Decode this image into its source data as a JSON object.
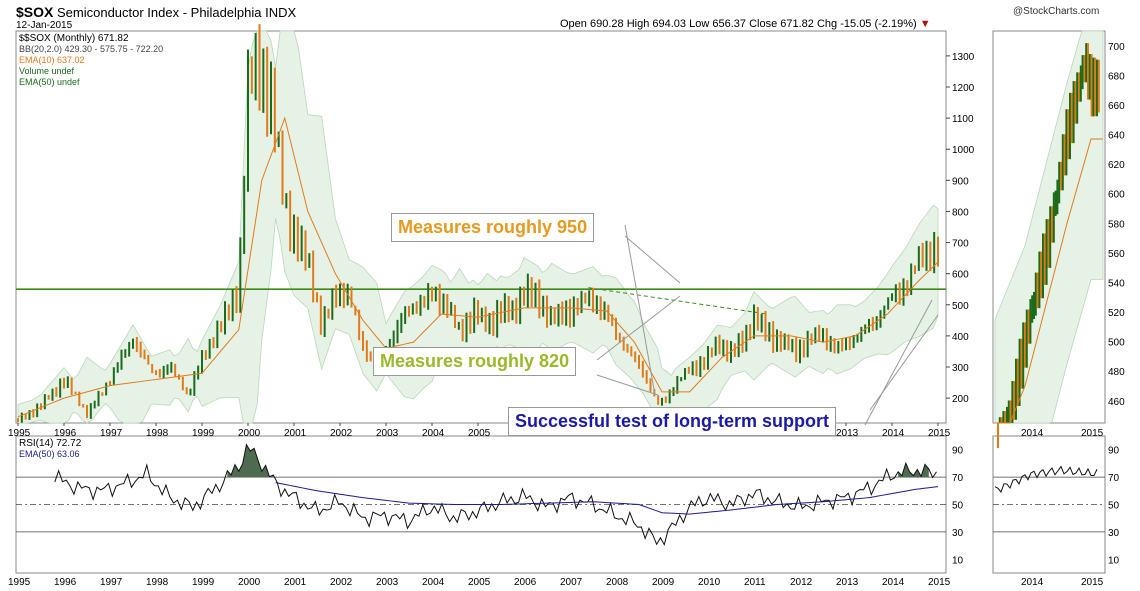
{
  "header": {
    "symbol": "$SOX",
    "name": "Semiconductor Index - Philadelphia",
    "exchange": "INDX",
    "date": "12-Jan-2015",
    "watermark": "@StockCharts.com",
    "open_label": "Open",
    "open": "690.28",
    "high_label": "High",
    "high": "694.03",
    "low_label": "Low",
    "low": "656.37",
    "close_label": "Close",
    "close": "671.82",
    "chg_label": "Chg",
    "chg": "-15.05 (-2.19%)",
    "chg_arrow": "▼"
  },
  "legend": {
    "series": "$SOX (Monthly) 671.82",
    "bb": "BB(20,2.0) 429.30 - 575.75 - 722.20",
    "ema10": "EMA(10) 637.02",
    "volume": "Volume undef",
    "ema50": "EMA(50) undef"
  },
  "rsi_legend": {
    "rsi": "RSI(14) 72.72",
    "ema": "EMA(50) 63.06"
  },
  "annotations": {
    "a950": "Measures roughly 950",
    "a820": "Measures roughly 820",
    "support": "Successful test of long-term support"
  },
  "colors": {
    "up": "#1a6b1a",
    "down": "#e07b1a",
    "bb_fill": "#e6f2e6",
    "support_line": "#3a8a1a",
    "a950_text": "#e69a1f",
    "a820_text": "#9ab92a",
    "support_text": "#1a1aa6",
    "rsi_ema": "#1a1a8c",
    "overbought_fill": "#4f6b4f"
  },
  "chart_data": [
    {
      "type": "line",
      "title": "$SOX Semiconductor Index - Philadelphia (Monthly)",
      "x_ticks": [
        "1995",
        "1996",
        "1997",
        "1998",
        "1999",
        "2000",
        "2001",
        "2002",
        "2003",
        "2004",
        "2005",
        "2006",
        "2007",
        "2008",
        "2009",
        "2010",
        "2011",
        "2012",
        "2013",
        "2014",
        "2015"
      ],
      "y_ticks": [
        200,
        300,
        400,
        500,
        600,
        700,
        800,
        900,
        1000,
        1100,
        1200,
        1300
      ],
      "ylim": [
        120,
        1380
      ],
      "support_level": 550,
      "series": [
        {
          "name": "$SOX monthly close",
          "x": [
            1995.0,
            1995.5,
            1996.0,
            1996.5,
            1997.0,
            1997.5,
            1997.9,
            1998.3,
            1998.7,
            1999.0,
            1999.4,
            1999.8,
            2000.0,
            2000.2,
            2000.5,
            2000.8,
            2001.0,
            2001.3,
            2001.6,
            2001.9,
            2002.2,
            2002.5,
            2002.8,
            2003.1,
            2003.4,
            2003.8,
            2004.0,
            2004.3,
            2004.6,
            2004.9,
            2005.2,
            2005.5,
            2005.8,
            2006.0,
            2006.3,
            2006.6,
            2006.9,
            2007.2,
            2007.5,
            2007.8,
            2008.0,
            2008.3,
            2008.6,
            2008.9,
            2009.1,
            2009.3,
            2009.6,
            2009.9,
            2010.2,
            2010.5,
            2010.8,
            2011.0,
            2011.3,
            2011.6,
            2011.9,
            2012.2,
            2012.5,
            2012.8,
            2013.1,
            2013.4,
            2013.7,
            2014.0,
            2014.3,
            2014.6,
            2014.9,
            2015.0
          ],
          "y": [
            130,
            175,
            260,
            150,
            260,
            395,
            280,
            300,
            210,
            330,
            430,
            560,
            1180,
            1300,
            1150,
            820,
            720,
            650,
            420,
            550,
            520,
            370,
            300,
            390,
            470,
            510,
            540,
            500,
            410,
            480,
            430,
            490,
            470,
            550,
            520,
            450,
            480,
            500,
            520,
            470,
            400,
            350,
            280,
            180,
            200,
            250,
            290,
            320,
            370,
            350,
            390,
            460,
            410,
            380,
            350,
            390,
            400,
            360,
            380,
            420,
            460,
            520,
            570,
            640,
            690,
            672
          ]
        },
        {
          "name": "EMA(10)",
          "x": [
            1995.0,
            1996.0,
            1997.0,
            1998.0,
            1999.0,
            1999.8,
            2000.3,
            2000.8,
            2001.3,
            2001.9,
            2002.5,
            2003.0,
            2003.6,
            2004.2,
            2005.0,
            2006.0,
            2007.0,
            2007.8,
            2008.4,
            2009.0,
            2009.6,
            2010.3,
            2011.0,
            2011.8,
            2012.5,
            2013.2,
            2013.9,
            2014.6,
            2015.0
          ],
          "y": [
            140,
            200,
            240,
            260,
            280,
            420,
            900,
            1100,
            800,
            600,
            450,
            360,
            380,
            470,
            460,
            490,
            490,
            480,
            380,
            220,
            220,
            330,
            400,
            400,
            380,
            400,
            470,
            580,
            637
          ]
        }
      ]
    },
    {
      "type": "line",
      "title": "RSI(14)",
      "ylim": [
        0,
        100
      ],
      "y_ticks": [
        10,
        30,
        50,
        70,
        90
      ],
      "reference_lines": [
        30,
        50,
        70
      ],
      "series": [
        {
          "name": "RSI(14)",
          "x": [
            1995.8,
            1996.3,
            1996.8,
            1997.3,
            1997.8,
            1998.3,
            1998.8,
            1999.3,
            1999.8,
            2000.0,
            2000.3,
            2000.6,
            2001.0,
            2001.5,
            2002.0,
            2002.5,
            2003.0,
            2003.5,
            2004.0,
            2004.5,
            2005.0,
            2005.5,
            2006.0,
            2006.5,
            2007.0,
            2007.5,
            2008.0,
            2008.5,
            2008.9,
            2009.2,
            2009.6,
            2010.0,
            2010.5,
            2011.0,
            2011.5,
            2012.0,
            2012.5,
            2013.0,
            2013.5,
            2014.0,
            2014.5,
            2015.0
          ],
          "y": [
            70,
            62,
            60,
            65,
            72,
            55,
            48,
            62,
            78,
            92,
            80,
            65,
            55,
            45,
            52,
            40,
            42,
            38,
            48,
            40,
            45,
            52,
            56,
            48,
            55,
            50,
            42,
            35,
            22,
            32,
            48,
            55,
            50,
            58,
            52,
            48,
            52,
            55,
            62,
            72,
            75,
            72.72
          ]
        },
        {
          "name": "EMA(50)",
          "x": [
            2000.6,
            2001.5,
            2002.5,
            2003.5,
            2004.5,
            2005.5,
            2006.5,
            2007.5,
            2008.5,
            2009.0,
            2009.6,
            2010.5,
            2011.5,
            2012.5,
            2013.5,
            2014.5,
            2015.0
          ],
          "y": [
            66,
            60,
            55,
            51,
            50,
            50,
            51,
            52,
            50,
            44,
            43,
            46,
            50,
            52,
            55,
            61,
            63.06
          ]
        }
      ]
    }
  ]
}
